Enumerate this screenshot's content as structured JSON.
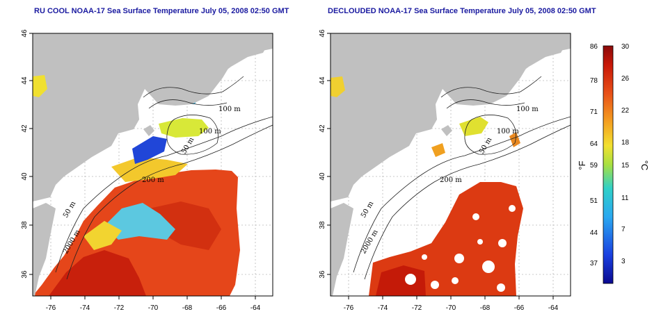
{
  "titles": {
    "left": "RU COOL NOAA-17 Sea Surface Temperature July 05, 2008 02:50 GMT",
    "right": "DECLOUDED NOAA-17 Sea Surface Temperature July 05, 2008 02:50 GMT"
  },
  "axes": {
    "x_ticks": [
      "-76",
      "-74",
      "-72",
      "-70",
      "-68",
      "-66",
      "-64"
    ],
    "y_ticks": [
      "36",
      "38",
      "40",
      "42",
      "44",
      "46"
    ]
  },
  "contour_labels": {
    "left": [
      "100 m",
      "100 m",
      "50 m",
      "200 m",
      "50 m",
      "2000 m"
    ],
    "right": [
      "100 m",
      "100 m",
      "50 m",
      "200 m",
      "50 m",
      "2000 m"
    ]
  },
  "colorbar": {
    "fahrenheit": [
      "86",
      "78",
      "71",
      "64",
      "59",
      "51",
      "44",
      "37"
    ],
    "celsius": [
      "30",
      "26",
      "22",
      "18",
      "15",
      "11",
      "7",
      "3"
    ],
    "unit_f": "°F",
    "unit_c": "°C"
  },
  "colors": {
    "land": "#c0c0c0",
    "warm": "#e03a10",
    "hot": "#c41a08",
    "mid": "#f6d92a",
    "cool": "#30b8e8",
    "cold": "#1a36d0",
    "title": "#1a1aa0"
  }
}
